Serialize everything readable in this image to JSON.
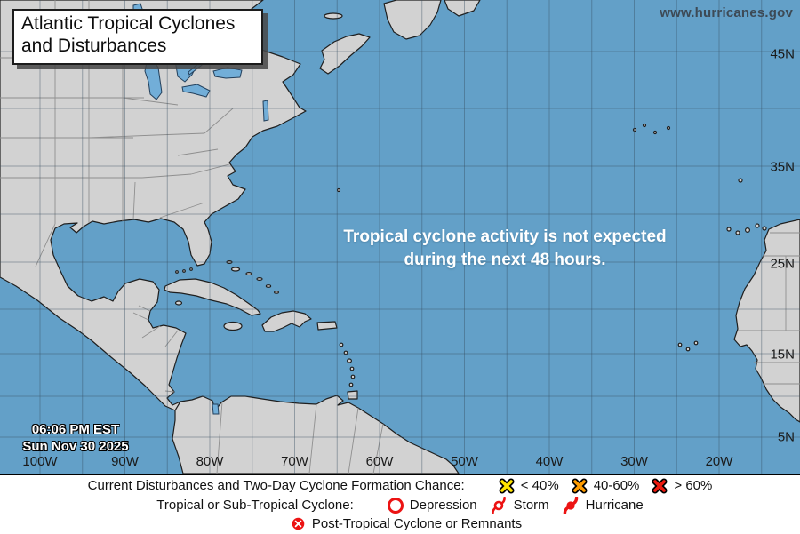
{
  "header": {
    "title": "Atlantic Tropical Cyclones and Disturbances",
    "website": "www.hurricanes.gov"
  },
  "map": {
    "message_line1": "Tropical cyclone activity is not expected",
    "message_line2": "during the next 48 hours.",
    "timestamp_time": "06:06 PM EST",
    "timestamp_date": "Sun Nov 30 2025",
    "lat_labels": [
      "45N",
      "35N",
      "25N",
      "15N",
      "5N"
    ],
    "lon_labels": [
      "100W",
      "90W",
      "80W",
      "70W",
      "60W",
      "50W",
      "40W",
      "30W",
      "20W"
    ]
  },
  "legend": {
    "row1_label": "Current Disturbances and Two-Day Cyclone Formation Chance:",
    "row1_items": [
      {
        "icon": "x-marker-low",
        "color": "#ffe400",
        "label": "< 40%"
      },
      {
        "icon": "x-marker-medium",
        "color": "#ff9c00",
        "label": "40-60%"
      },
      {
        "icon": "x-marker-high",
        "color": "#ed1b10",
        "label": "> 60%"
      }
    ],
    "row2_label": "Tropical or Sub-Tropical Cyclone:",
    "row2_items": [
      {
        "icon": "depression-circle",
        "label": "Depression"
      },
      {
        "icon": "storm-swirl",
        "label": "Storm"
      },
      {
        "icon": "hurricane-symbol",
        "label": "Hurricane"
      }
    ],
    "row3_items": [
      {
        "icon": "post-tropical-circled-x",
        "label": "Post-Tropical Cyclone or Remnants"
      }
    ],
    "symbol_red": "#ec1313"
  },
  "colors": {
    "ocean": "#63a0c8",
    "land": "#d2d2d2",
    "lake": "#72aed8",
    "coast": "#1f1f1f",
    "inner_border": "#8f8f8f",
    "grid": "rgba(55,78,98,0.42)",
    "website_text": "#3d4a56"
  }
}
